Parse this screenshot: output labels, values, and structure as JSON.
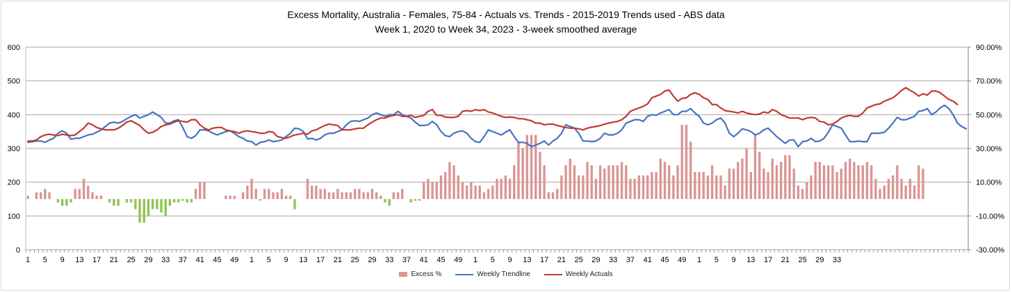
{
  "chart_data": {
    "type": "bar-line-combo",
    "title": "Excess Mortality, Australia - Females, 75-84 - Actuals vs. Trends - 2015-2019 Trends used - ABS data",
    "subtitle": "Week 1, 2020 to Week 34, 2023 - 3-week smoothed average",
    "left_axis": {
      "min": 0,
      "max": 600,
      "ticks": [
        "0",
        "100",
        "200",
        "300",
        "400",
        "500",
        "600"
      ]
    },
    "right_axis": {
      "min": -30,
      "max": 90,
      "ticks": [
        "-30.00%",
        "-10.00%",
        "10.00%",
        "30.00%",
        "50.00%",
        "70.00%",
        "90.00%"
      ]
    },
    "grid": true,
    "legend_position": "bottom",
    "x_tick_labels": [
      "1",
      "5",
      "9",
      "13",
      "17",
      "21",
      "25",
      "29",
      "33",
      "37",
      "41",
      "45",
      "49",
      "1",
      "5",
      "9",
      "13",
      "17",
      "21",
      "25",
      "29",
      "33",
      "37",
      "41",
      "45",
      "49",
      "1",
      "5",
      "9",
      "13",
      "17",
      "21",
      "25",
      "29",
      "33",
      "37",
      "41",
      "45",
      "49",
      "1",
      "5",
      "9",
      "13",
      "17",
      "21",
      "25",
      "29",
      "33"
    ],
    "series": [
      {
        "name": "Excess %",
        "type": "bar",
        "axis": "right",
        "color": "#d99694",
        "negative_color": "#92c353",
        "values": [
          2,
          0,
          4,
          4,
          6,
          4,
          0,
          -2,
          -4,
          -4,
          -2,
          6,
          6,
          12,
          8,
          4,
          2,
          2,
          0,
          -2,
          -4,
          -4,
          0,
          -2,
          -2,
          -6,
          -14,
          -14,
          -10,
          -6,
          -6,
          -8,
          -10,
          -4,
          -2,
          -2,
          -1,
          -2,
          -2,
          6,
          10,
          10,
          0,
          0,
          0,
          0,
          2,
          2,
          2,
          0,
          4,
          8,
          12,
          6,
          -1,
          6,
          6,
          4,
          4,
          6,
          2,
          2,
          -6,
          0,
          0,
          12,
          8,
          8,
          6,
          6,
          4,
          4,
          6,
          4,
          4,
          4,
          6,
          6,
          4,
          4,
          6,
          4,
          2,
          -2,
          -4,
          4,
          4,
          6,
          0,
          -2,
          -1,
          -1,
          10,
          12,
          10,
          10,
          14,
          16,
          22,
          20,
          14,
          10,
          8,
          10,
          8,
          8,
          4,
          6,
          8,
          12,
          12,
          14,
          12,
          20,
          34,
          30,
          38,
          38,
          38,
          28,
          20,
          4,
          4,
          6,
          14,
          20,
          24,
          20,
          14,
          14,
          22,
          20,
          12,
          20,
          18,
          20,
          20,
          20,
          22,
          20,
          12,
          12,
          14,
          14,
          14,
          16,
          16,
          24,
          22,
          20,
          14,
          20,
          44,
          44,
          34,
          16,
          16,
          16,
          14,
          20,
          14,
          14,
          8,
          18,
          18,
          22,
          24,
          30,
          16,
          38,
          28,
          18,
          16,
          24,
          20,
          22,
          26,
          26,
          18,
          8,
          6,
          10,
          14,
          22,
          22,
          20,
          20,
          20,
          16,
          18,
          22,
          24,
          22,
          20,
          20,
          22,
          20,
          12,
          6,
          8,
          12,
          14,
          20,
          12,
          8,
          12,
          8,
          20,
          18
        ]
      },
      {
        "name": "Weekly Trendline",
        "type": "line",
        "axis": "left",
        "color": "#4472c4",
        "values": [
          318,
          320,
          322,
          322,
          318,
          325,
          330,
          345,
          352,
          345,
          327,
          330,
          330,
          335,
          340,
          342,
          348,
          355,
          365,
          375,
          378,
          375,
          380,
          388,
          395,
          400,
          390,
          395,
          400,
          408,
          400,
          392,
          375,
          375,
          382,
          385,
          362,
          335,
          330,
          338,
          355,
          355,
          352,
          345,
          340,
          345,
          350,
          352,
          345,
          335,
          330,
          322,
          320,
          310,
          318,
          320,
          325,
          320,
          322,
          325,
          335,
          345,
          360,
          358,
          350,
          328,
          330,
          325,
          330,
          340,
          345,
          345,
          350,
          355,
          370,
          380,
          382,
          380,
          385,
          390,
          400,
          405,
          400,
          395,
          400,
          400,
          410,
          400,
          395,
          390,
          378,
          368,
          368,
          370,
          380,
          370,
          350,
          338,
          335,
          345,
          350,
          352,
          345,
          330,
          320,
          318,
          335,
          355,
          350,
          345,
          340,
          348,
          355,
          335,
          318,
          318,
          315,
          305,
          310,
          315,
          322,
          310,
          322,
          330,
          345,
          370,
          365,
          360,
          345,
          322,
          322,
          320,
          322,
          330,
          345,
          340,
          340,
          345,
          355,
          375,
          380,
          385,
          385,
          380,
          395,
          400,
          398,
          405,
          410,
          415,
          400,
          400,
          410,
          410,
          418,
          405,
          395,
          375,
          370,
          375,
          385,
          390,
          375,
          345,
          335,
          345,
          358,
          355,
          350,
          340,
          345,
          355,
          360,
          348,
          335,
          325,
          315,
          325,
          325,
          305,
          320,
          322,
          330,
          320,
          322,
          330,
          348,
          370,
          365,
          360,
          340,
          320,
          320,
          322,
          320,
          320,
          345,
          345,
          345,
          348,
          360,
          375,
          392,
          385,
          385,
          390,
          395,
          410,
          412,
          418,
          400,
          408,
          420,
          428,
          418,
          400,
          375,
          365,
          358
        ]
      },
      {
        "name": "Weekly Actuals",
        "type": "line",
        "axis": "left",
        "color": "#c0392b",
        "values": [
          322,
          322,
          325,
          335,
          340,
          342,
          340,
          338,
          342,
          340,
          338,
          340,
          350,
          360,
          375,
          370,
          362,
          358,
          355,
          355,
          355,
          360,
          368,
          378,
          382,
          375,
          368,
          355,
          345,
          348,
          355,
          365,
          370,
          372,
          378,
          382,
          380,
          378,
          385,
          385,
          370,
          360,
          355,
          360,
          362,
          362,
          355,
          352,
          350,
          345,
          350,
          352,
          350,
          348,
          345,
          345,
          350,
          348,
          335,
          332,
          330,
          335,
          340,
          342,
          345,
          342,
          352,
          355,
          362,
          368,
          372,
          370,
          368,
          355,
          355,
          355,
          358,
          360,
          360,
          370,
          378,
          385,
          390,
          390,
          395,
          398,
          400,
          395,
          395,
          398,
          392,
          395,
          398,
          410,
          415,
          398,
          398,
          393,
          392,
          392,
          395,
          410,
          412,
          410,
          415,
          412,
          415,
          408,
          405,
          400,
          395,
          392,
          393,
          392,
          388,
          388,
          385,
          382,
          375,
          375,
          370,
          372,
          372,
          368,
          365,
          362,
          360,
          360,
          358,
          355,
          360,
          363,
          365,
          368,
          372,
          375,
          378,
          380,
          385,
          395,
          410,
          415,
          420,
          425,
          432,
          450,
          455,
          460,
          470,
          473,
          455,
          440,
          448,
          450,
          460,
          465,
          460,
          450,
          445,
          430,
          430,
          420,
          412,
          410,
          408,
          405,
          410,
          405,
          402,
          400,
          402,
          408,
          405,
          415,
          410,
          400,
          395,
          390,
          390,
          390,
          385,
          390,
          392,
          390,
          380,
          378,
          370,
          372,
          380,
          390,
          395,
          398,
          395,
          395,
          405,
          420,
          425,
          430,
          432,
          440,
          445,
          450,
          460,
          472,
          480,
          472,
          465,
          455,
          462,
          458,
          470,
          470,
          465,
          455,
          445,
          440,
          430
        ]
      }
    ]
  }
}
